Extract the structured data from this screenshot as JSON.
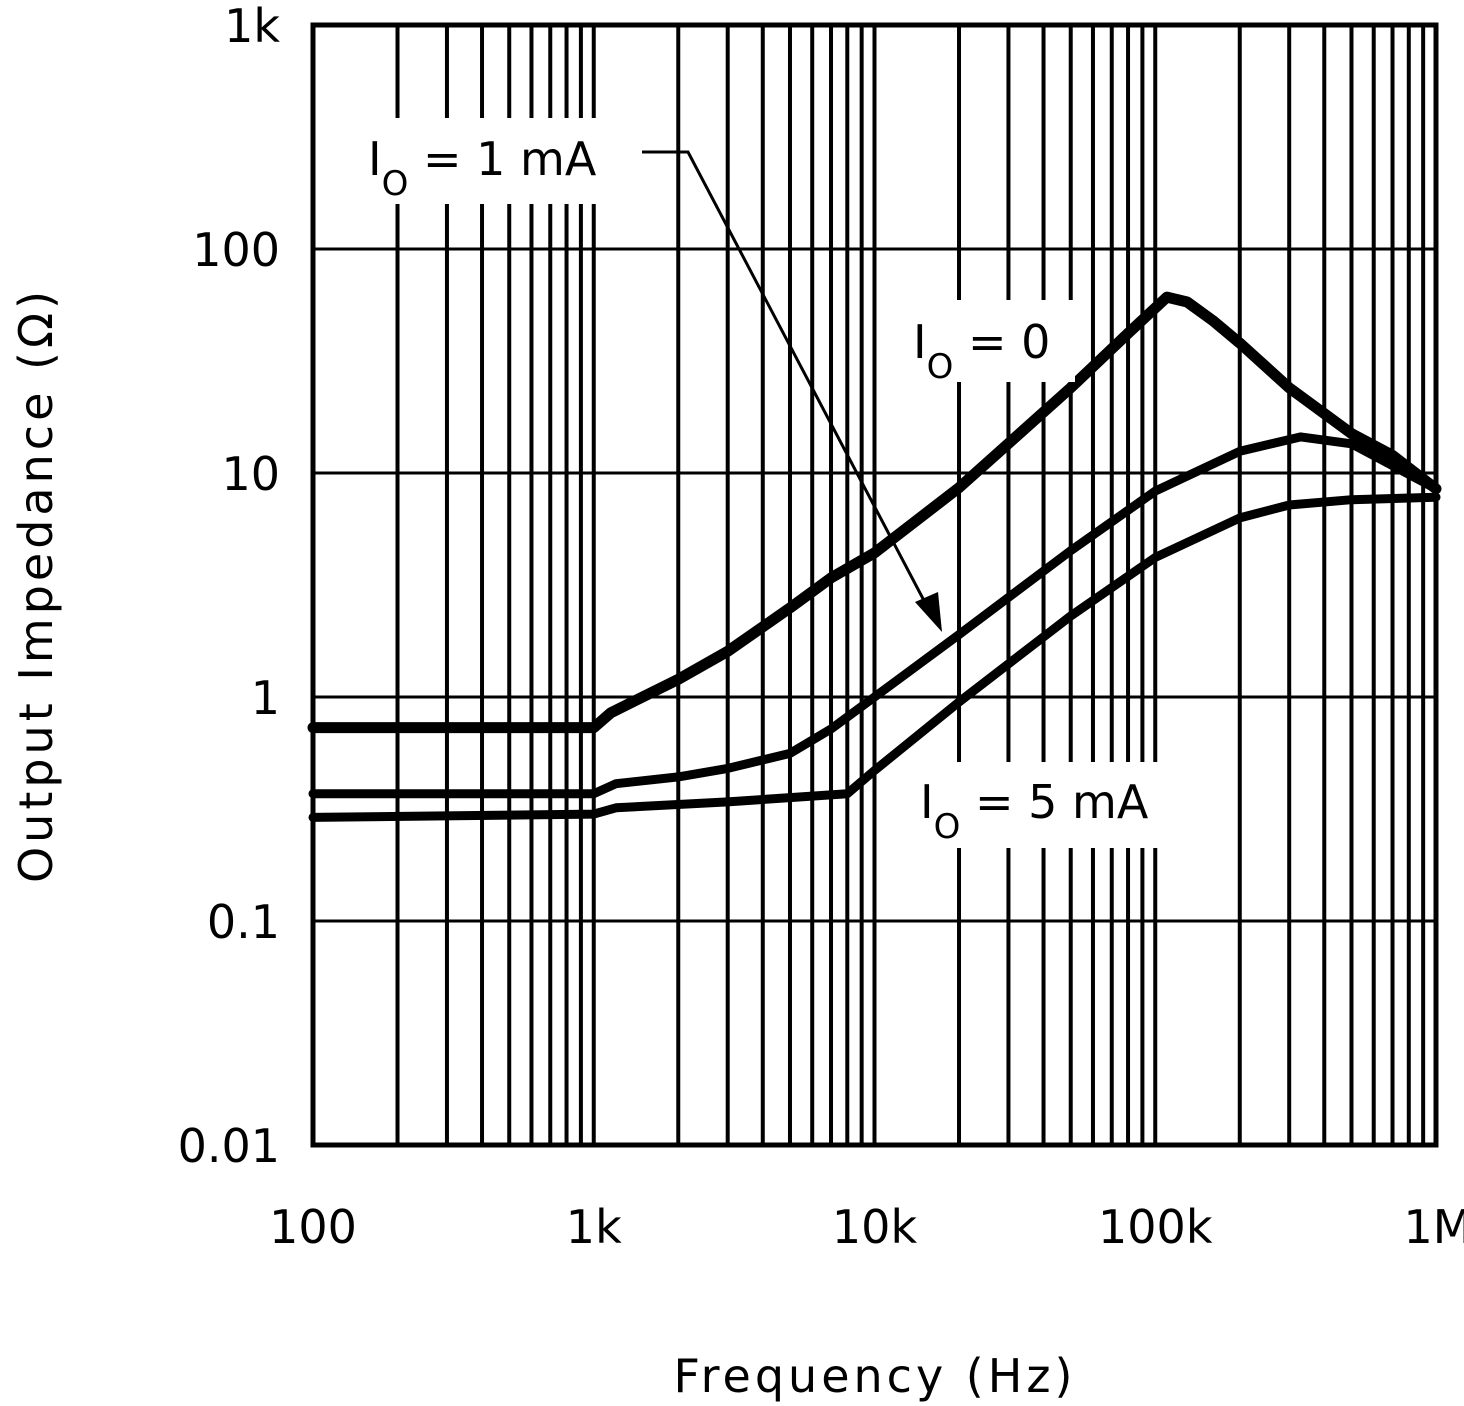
{
  "chart_data": {
    "type": "line",
    "title": "",
    "xlabel": "Frequency (Hz)",
    "ylabel": "Output Impedance (Ω)",
    "x_scale": "log",
    "y_scale": "log",
    "xlim": [
      100,
      1000000
    ],
    "ylim": [
      0.01,
      1000
    ],
    "grid": true,
    "x_ticks": [
      100,
      1000,
      10000,
      100000,
      1000000
    ],
    "x_tick_labels": [
      "100",
      "1k",
      "10k",
      "100k",
      "1M"
    ],
    "y_ticks": [
      0.01,
      0.1,
      1,
      10,
      100,
      1000
    ],
    "y_tick_labels": [
      "0.01",
      "0.1",
      "1",
      "10",
      "100",
      "1k"
    ],
    "series": [
      {
        "name": "IO = 0",
        "label_main": "I",
        "label_sub": "O",
        "label_rest": " = 0",
        "points": [
          [
            100,
            0.73
          ],
          [
            1000,
            0.73
          ],
          [
            1150,
            0.85
          ],
          [
            2000,
            1.2
          ],
          [
            3000,
            1.6
          ],
          [
            5000,
            2.5
          ],
          [
            7000,
            3.4
          ],
          [
            10000,
            4.4
          ],
          [
            20000,
            8.6
          ],
          [
            50000,
            24
          ],
          [
            80000,
            42
          ],
          [
            110000,
            61
          ],
          [
            130000,
            58
          ],
          [
            160000,
            48
          ],
          [
            200000,
            38
          ],
          [
            300000,
            24
          ],
          [
            500000,
            15
          ],
          [
            700000,
            12
          ],
          [
            1000000,
            8.5
          ]
        ]
      },
      {
        "name": "IO = 1 mA",
        "label_main": "I",
        "label_sub": "O",
        "label_rest": " = 1 mA",
        "points": [
          [
            100,
            0.37
          ],
          [
            1000,
            0.37
          ],
          [
            1200,
            0.41
          ],
          [
            2000,
            0.44
          ],
          [
            3000,
            0.48
          ],
          [
            5000,
            0.56
          ],
          [
            7000,
            0.72
          ],
          [
            10000,
            1.0
          ],
          [
            20000,
            1.9
          ],
          [
            50000,
            4.5
          ],
          [
            100000,
            8.3
          ],
          [
            200000,
            12.5
          ],
          [
            330000,
            14.5
          ],
          [
            500000,
            13.5
          ],
          [
            1000000,
            8.5
          ]
        ]
      },
      {
        "name": "IO = 5 mA",
        "label_main": "I",
        "label_sub": "O",
        "label_rest": " = 5 mA",
        "points": [
          [
            100,
            0.29
          ],
          [
            1000,
            0.3
          ],
          [
            1200,
            0.32
          ],
          [
            3000,
            0.34
          ],
          [
            8000,
            0.37
          ],
          [
            10000,
            0.47
          ],
          [
            20000,
            0.95
          ],
          [
            50000,
            2.3
          ],
          [
            100000,
            4.2
          ],
          [
            200000,
            6.3
          ],
          [
            300000,
            7.2
          ],
          [
            500000,
            7.6
          ],
          [
            1000000,
            7.8
          ]
        ]
      }
    ],
    "line_color": "#000000",
    "background": "#ffffff"
  }
}
